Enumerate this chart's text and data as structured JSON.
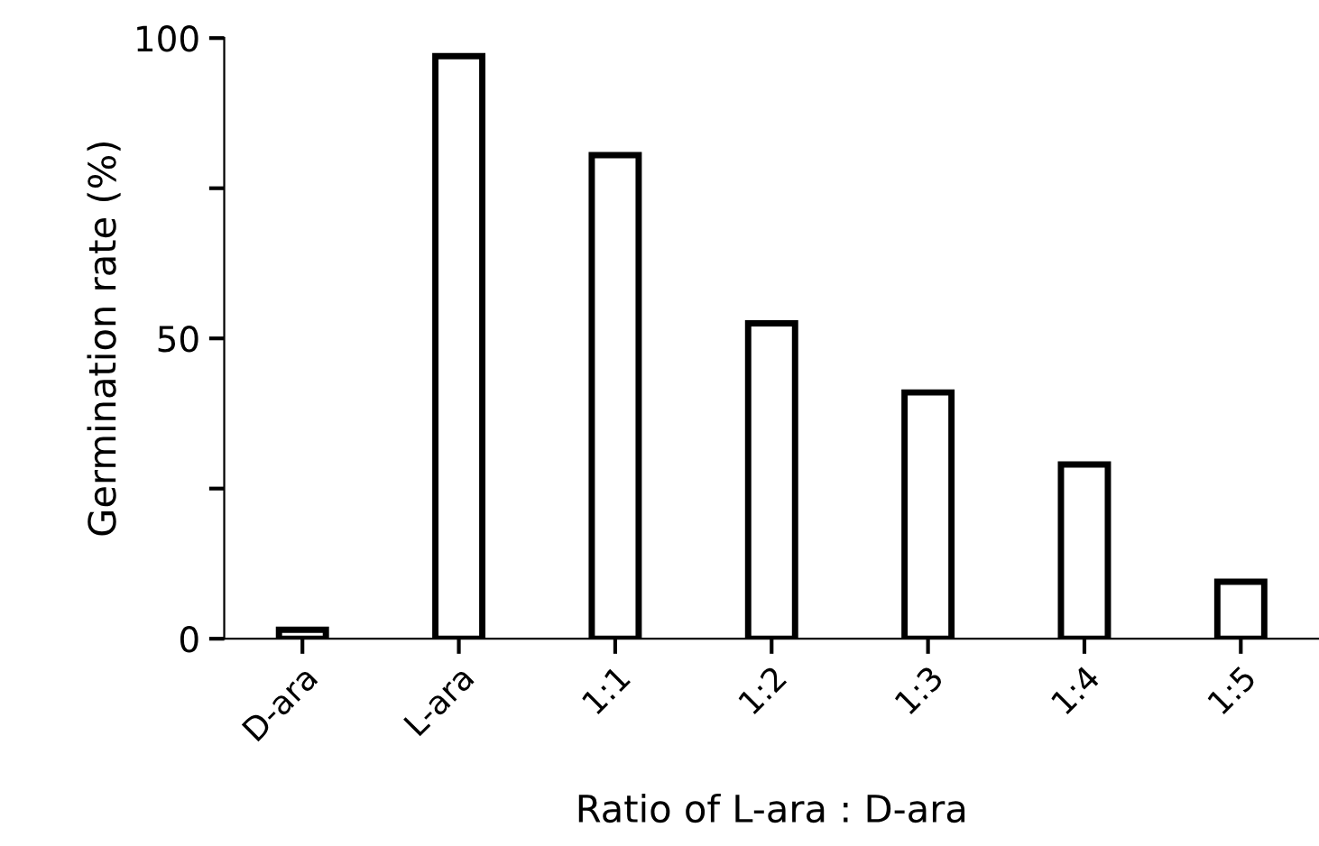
{
  "chart_data": {
    "type": "bar",
    "xlabel": "Ratio of L-ara : D-ara",
    "ylabel": "Germination rate (%)",
    "categories": [
      "D-ara",
      "L-ara",
      "1:1",
      "1:2",
      "1:3",
      "1:4",
      "1:5"
    ],
    "values": [
      1.5,
      97,
      80.5,
      52.5,
      41,
      29,
      9.5
    ],
    "color": "#ffffff",
    "ylim": [
      0,
      100
    ],
    "yticks": [
      0,
      {
        "value": 25,
        "label": null
      },
      50,
      {
        "value": 75,
        "label": null
      },
      100
    ],
    "grid": false
  }
}
